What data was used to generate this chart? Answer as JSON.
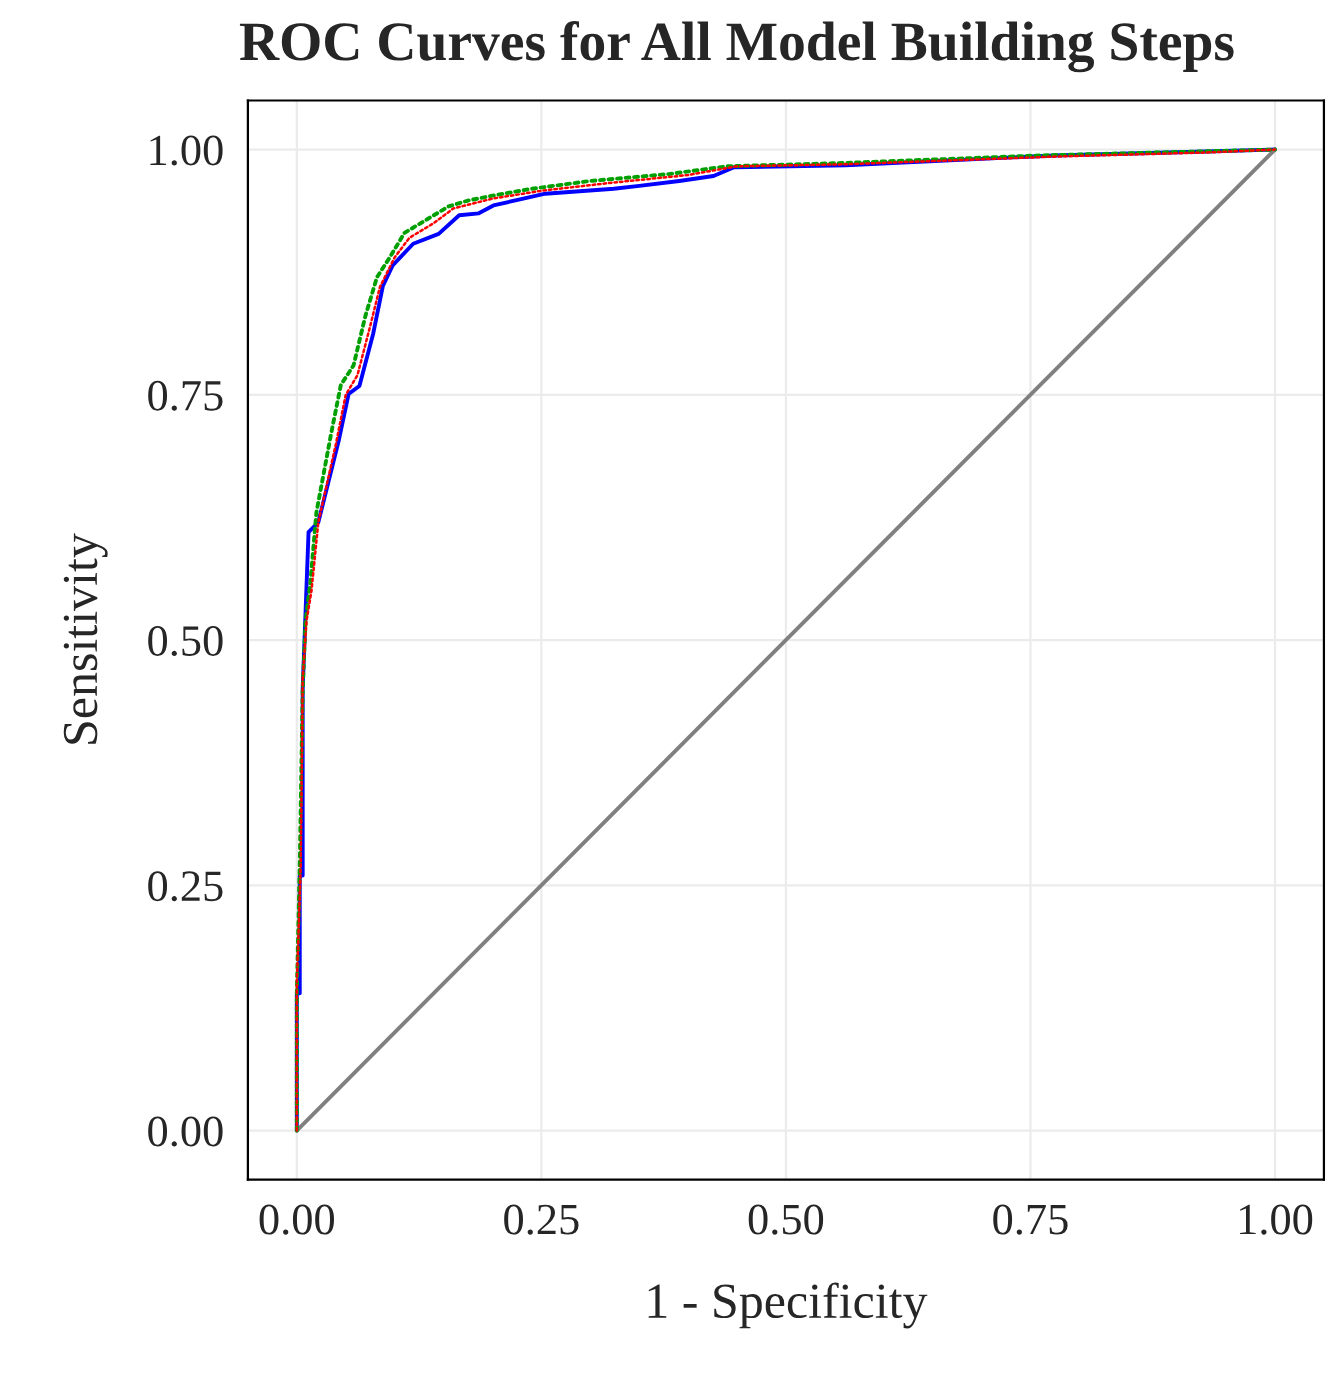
{
  "chart_data": {
    "type": "line",
    "title": "ROC Curves for All Model Building Steps",
    "xlabel": "1 - Specificity",
    "ylabel": "Sensitivity",
    "xlim": [
      -0.05,
      1.05
    ],
    "ylim": [
      -0.05,
      1.05
    ],
    "xticks": [
      {
        "value": 0,
        "label": "0.00"
      },
      {
        "value": 0.25,
        "label": "0.25"
      },
      {
        "value": 0.5,
        "label": "0.50"
      },
      {
        "value": 0.75,
        "label": "0.75"
      },
      {
        "value": 1,
        "label": "1.00"
      }
    ],
    "yticks": [
      {
        "value": 0,
        "label": "0.00"
      },
      {
        "value": 0.25,
        "label": "0.25"
      },
      {
        "value": 0.5,
        "label": "0.50"
      },
      {
        "value": 0.75,
        "label": "0.75"
      },
      {
        "value": 1,
        "label": "1.00"
      }
    ],
    "grid": true,
    "legend": false,
    "series": [
      {
        "color": "#ff0000",
        "line_style": "dotted",
        "x": [
          0,
          0,
          0.004,
          0.006,
          0.01,
          0.015,
          0.022,
          0.04,
          0.05,
          0.062,
          0.075,
          0.085,
          0.1,
          0.115,
          0.14,
          0.16,
          0.18,
          0.2,
          0.25,
          0.32,
          0.4,
          0.45,
          0.56,
          0.78,
          0.93,
          1
        ],
        "values": [
          0,
          0.15,
          0.27,
          0.46,
          0.52,
          0.55,
          0.62,
          0.7,
          0.75,
          0.77,
          0.82,
          0.86,
          0.89,
          0.91,
          0.925,
          0.94,
          0.945,
          0.95,
          0.958,
          0.966,
          0.974,
          0.983,
          0.985,
          0.993,
          0.997,
          1
        ]
      },
      {
        "color": "#00a000",
        "line_style": "dotted",
        "x": [
          0,
          0,
          0.003,
          0.006,
          0.009,
          0.014,
          0.02,
          0.035,
          0.045,
          0.058,
          0.07,
          0.082,
          0.095,
          0.11,
          0.135,
          0.155,
          0.175,
          0.2,
          0.24,
          0.3,
          0.38,
          0.44,
          0.55,
          0.76,
          0.92,
          1
        ],
        "values": [
          0,
          0.14,
          0.27,
          0.45,
          0.52,
          0.56,
          0.63,
          0.71,
          0.76,
          0.78,
          0.83,
          0.87,
          0.89,
          0.915,
          0.93,
          0.942,
          0.948,
          0.953,
          0.96,
          0.968,
          0.975,
          0.983,
          0.986,
          0.994,
          0.998,
          1
        ]
      },
      {
        "color": "#0000ff",
        "line_style": "solid",
        "x": [
          0,
          0,
          0.003,
          0.003,
          0.006,
          0.006,
          0.012,
          0.022,
          0.043,
          0.053,
          0.064,
          0.078,
          0.088,
          0.098,
          0.119,
          0.145,
          0.166,
          0.186,
          0.201,
          0.227,
          0.254,
          0.324,
          0.35,
          0.391,
          0.426,
          0.447,
          0.561,
          0.775,
          0.93,
          1
        ],
        "values": [
          0,
          0.14,
          0.14,
          0.26,
          0.26,
          0.45,
          0.61,
          0.62,
          0.704,
          0.751,
          0.759,
          0.812,
          0.861,
          0.882,
          0.904,
          0.914,
          0.933,
          0.935,
          0.943,
          0.949,
          0.955,
          0.96,
          0.963,
          0.968,
          0.973,
          0.982,
          0.984,
          0.994,
          0.998,
          1
        ]
      },
      {
        "color": "#808080",
        "line_style": "solid",
        "x": [
          0,
          1
        ],
        "values": [
          0,
          1
        ]
      }
    ]
  }
}
